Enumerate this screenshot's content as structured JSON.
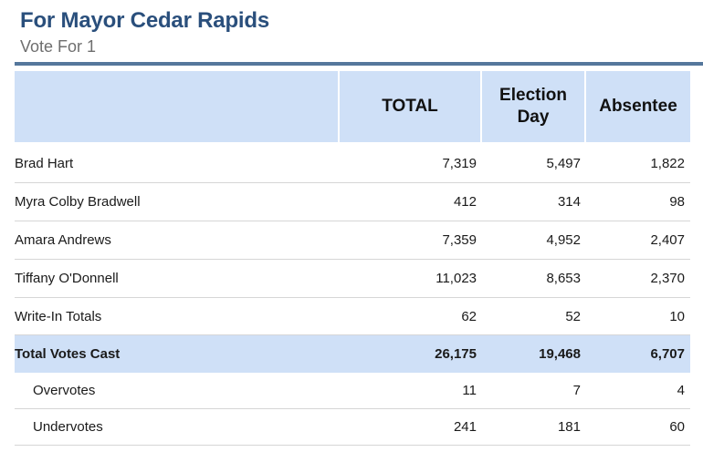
{
  "header": {
    "title": "For Mayor Cedar Rapids",
    "subtitle": "Vote For 1"
  },
  "columns": {
    "total": "TOTAL",
    "election_day": "Election Day",
    "absentee": "Absentee"
  },
  "rows": [
    {
      "name": "Brad Hart",
      "total": "7,319",
      "election_day": "5,497",
      "absentee": "1,822"
    },
    {
      "name": "Myra Colby Bradwell",
      "total": "412",
      "election_day": "314",
      "absentee": "98"
    },
    {
      "name": "Amara Andrews",
      "total": "7,359",
      "election_day": "4,952",
      "absentee": "2,407"
    },
    {
      "name": "Tiffany O'Donnell",
      "total": "11,023",
      "election_day": "8,653",
      "absentee": "2,370"
    },
    {
      "name": "Write-In Totals",
      "total": "62",
      "election_day": "52",
      "absentee": "10"
    },
    {
      "name": "Total Votes Cast",
      "total": "26,175",
      "election_day": "19,468",
      "absentee": "6,707"
    },
    {
      "name": "Overvotes",
      "total": "11",
      "election_day": "7",
      "absentee": "4"
    },
    {
      "name": "Undervotes",
      "total": "241",
      "election_day": "181",
      "absentee": "60"
    }
  ]
}
